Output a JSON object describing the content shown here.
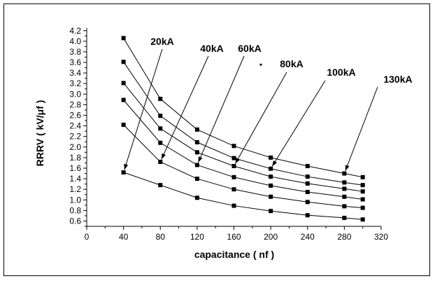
{
  "chart_data": {
    "type": "line",
    "title": "",
    "xlabel": "capacitance ( nf )",
    "ylabel": "RRRV ( kV/μf )",
    "xlim": [
      0,
      320
    ],
    "ylim": [
      0.5,
      4.25
    ],
    "x_ticks": [
      0,
      40,
      80,
      120,
      160,
      200,
      240,
      280,
      320
    ],
    "y_ticks": [
      0.6,
      0.8,
      1.0,
      1.2,
      1.4,
      1.6,
      1.8,
      2.0,
      2.2,
      2.4,
      2.6,
      2.8,
      3.0,
      3.2,
      3.4,
      3.6,
      3.8,
      4.0,
      4.2
    ],
    "x": [
      40,
      80,
      120,
      160,
      200,
      240,
      280,
      300
    ],
    "series": [
      {
        "name": "20kA",
        "values": [
          1.52,
          1.28,
          1.04,
          0.89,
          0.79,
          0.71,
          0.66,
          0.63
        ]
      },
      {
        "name": "40kA",
        "values": [
          2.42,
          1.72,
          1.4,
          1.2,
          1.06,
          0.96,
          0.88,
          0.85
        ]
      },
      {
        "name": "60kA",
        "values": [
          2.89,
          2.08,
          1.66,
          1.43,
          1.27,
          1.15,
          1.06,
          1.01
        ]
      },
      {
        "name": "80kA",
        "values": [
          3.21,
          2.35,
          1.9,
          1.64,
          1.44,
          1.31,
          1.21,
          1.16
        ]
      },
      {
        "name": "100kA",
        "values": [
          3.61,
          2.59,
          2.09,
          1.79,
          1.59,
          1.44,
          1.33,
          1.28
        ]
      },
      {
        "name": "130kA",
        "values": [
          4.06,
          2.91,
          2.33,
          2.02,
          1.8,
          1.64,
          1.5,
          1.43
        ]
      }
    ],
    "annotations": [
      {
        "text": "20kA",
        "series": "20kA",
        "target_x": 40
      },
      {
        "text": "40kA",
        "series": "40kA",
        "target_x": 80
      },
      {
        "text": "60kA",
        "series": "60kA",
        "target_x": 120
      },
      {
        "text": "80kA",
        "series": "80kA",
        "target_x": 160
      },
      {
        "text": "100kA",
        "series": "100kA",
        "target_x": 200
      },
      {
        "text": "130kA",
        "series": "130kA",
        "target_x": 280
      }
    ],
    "grid": false,
    "legend": "none",
    "marker": "square",
    "line_color": "#000000"
  }
}
